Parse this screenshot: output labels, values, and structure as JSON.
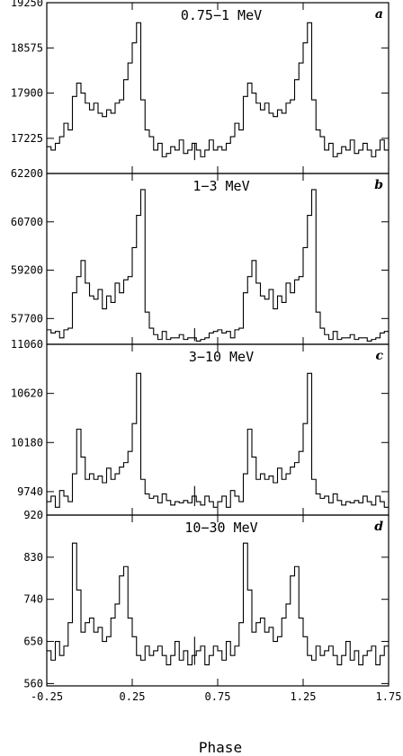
{
  "chart_data": {
    "type": "line",
    "xlabel": "Phase",
    "xlim": [
      -0.25,
      1.75
    ],
    "xticks": [
      "-0.25",
      "0.25",
      "0.75",
      "1.25",
      "1.75"
    ],
    "xtick_values": [
      -0.25,
      0.25,
      0.75,
      1.25,
      1.75
    ],
    "bins_per_cycle": 40,
    "panels": [
      {
        "letter": "a",
        "title": "0.75−1 MeV",
        "ylim": [
          16700,
          19250
        ],
        "yticks": [
          "19250",
          "18575",
          "17900",
          "17225"
        ],
        "ytick_values": [
          19250,
          18575,
          17900,
          17225
        ],
        "values": [
          17100,
          17050,
          17150,
          17250,
          17450,
          17350,
          17850,
          18050,
          17900,
          17750,
          17650,
          17750,
          17600,
          17550,
          17650,
          17600,
          17750,
          17800,
          18100,
          18350,
          18650,
          18950,
          17800,
          17350,
          17250,
          17050,
          17150,
          16950,
          17000,
          17100,
          17050,
          17200,
          17000,
          17050,
          17150,
          17050,
          16950,
          17050,
          17200,
          17050
        ],
        "error_bar": {
          "x": 0.615,
          "low": 16900,
          "high": 17150
        }
      },
      {
        "letter": "b",
        "title": "1−3 MeV",
        "ylim": [
          56900,
          62200
        ],
        "yticks": [
          "62200",
          "60700",
          "59200",
          "57700"
        ],
        "ytick_values": [
          62200,
          60700,
          59200,
          57700
        ],
        "values": [
          57350,
          57250,
          57300,
          57100,
          57350,
          57400,
          58500,
          59000,
          59500,
          58800,
          58400,
          58300,
          58600,
          58000,
          58400,
          58200,
          58800,
          58500,
          58900,
          59000,
          59900,
          60900,
          61700,
          57900,
          57400,
          57200,
          57050,
          57300,
          57050,
          57100,
          57100,
          57200,
          57050,
          57100,
          57100,
          57000,
          57050,
          57100,
          57250,
          57300
        ],
        "error_bar": {
          "x": 0.615,
          "low": 57000,
          "high": 57400
        }
      },
      {
        "letter": "c",
        "title": "3−10 MeV",
        "ylim": [
          9530,
          11060
        ],
        "yticks": [
          "11060",
          "10620",
          "10180",
          "9740"
        ],
        "ytick_values": [
          11060,
          10620,
          10180,
          9740
        ],
        "values": [
          9650,
          9700,
          9600,
          9750,
          9700,
          9650,
          9900,
          10300,
          10050,
          9850,
          9900,
          9850,
          9880,
          9820,
          9950,
          9850,
          9900,
          9960,
          10000,
          10100,
          10350,
          10800,
          9850,
          9720,
          9680,
          9700,
          9640,
          9720,
          9660,
          9620,
          9650,
          9640,
          9660,
          9640,
          9700,
          9650,
          9620,
          9700,
          9650,
          9600
        ],
        "error_bar": {
          "x": 0.615,
          "low": 9610,
          "high": 9790
        }
      },
      {
        "letter": "d",
        "title": "10−30 MeV",
        "ylim": [
          555,
          920
        ],
        "yticks": [
          "920",
          "830",
          "740",
          "650",
          "560"
        ],
        "ytick_values": [
          920,
          830,
          740,
          650,
          560
        ],
        "values": [
          630,
          610,
          650,
          620,
          640,
          690,
          860,
          760,
          670,
          690,
          700,
          670,
          680,
          650,
          660,
          700,
          730,
          790,
          810,
          700,
          660,
          620,
          610,
          640,
          620,
          630,
          640,
          620,
          600,
          620,
          650,
          610,
          630,
          600,
          620,
          630,
          640,
          600,
          620,
          640
        ],
        "error_bar": {
          "x": 0.615,
          "low": 600,
          "high": 660
        }
      }
    ]
  }
}
